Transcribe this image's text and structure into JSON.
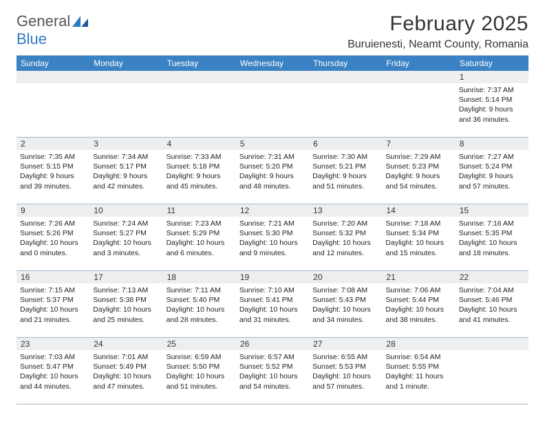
{
  "logo": {
    "text1": "General",
    "text2": "Blue"
  },
  "title": "February 2025",
  "location": "Buruienesti, Neamt County, Romania",
  "colors": {
    "header_bg": "#3b82c4",
    "header_text": "#ffffff",
    "daynum_bg": "#eceef0",
    "border": "#a8b8c8",
    "logo_gray": "#555555",
    "logo_blue": "#2f78c4"
  },
  "daynames": [
    "Sunday",
    "Monday",
    "Tuesday",
    "Wednesday",
    "Thursday",
    "Friday",
    "Saturday"
  ],
  "weeks": [
    [
      null,
      null,
      null,
      null,
      null,
      null,
      {
        "n": "1",
        "sr": "Sunrise: 7:37 AM",
        "ss": "Sunset: 5:14 PM",
        "d1": "Daylight: 9 hours",
        "d2": "and 36 minutes."
      }
    ],
    [
      {
        "n": "2",
        "sr": "Sunrise: 7:35 AM",
        "ss": "Sunset: 5:15 PM",
        "d1": "Daylight: 9 hours",
        "d2": "and 39 minutes."
      },
      {
        "n": "3",
        "sr": "Sunrise: 7:34 AM",
        "ss": "Sunset: 5:17 PM",
        "d1": "Daylight: 9 hours",
        "d2": "and 42 minutes."
      },
      {
        "n": "4",
        "sr": "Sunrise: 7:33 AM",
        "ss": "Sunset: 5:18 PM",
        "d1": "Daylight: 9 hours",
        "d2": "and 45 minutes."
      },
      {
        "n": "5",
        "sr": "Sunrise: 7:31 AM",
        "ss": "Sunset: 5:20 PM",
        "d1": "Daylight: 9 hours",
        "d2": "and 48 minutes."
      },
      {
        "n": "6",
        "sr": "Sunrise: 7:30 AM",
        "ss": "Sunset: 5:21 PM",
        "d1": "Daylight: 9 hours",
        "d2": "and 51 minutes."
      },
      {
        "n": "7",
        "sr": "Sunrise: 7:29 AM",
        "ss": "Sunset: 5:23 PM",
        "d1": "Daylight: 9 hours",
        "d2": "and 54 minutes."
      },
      {
        "n": "8",
        "sr": "Sunrise: 7:27 AM",
        "ss": "Sunset: 5:24 PM",
        "d1": "Daylight: 9 hours",
        "d2": "and 57 minutes."
      }
    ],
    [
      {
        "n": "9",
        "sr": "Sunrise: 7:26 AM",
        "ss": "Sunset: 5:26 PM",
        "d1": "Daylight: 10 hours",
        "d2": "and 0 minutes."
      },
      {
        "n": "10",
        "sr": "Sunrise: 7:24 AM",
        "ss": "Sunset: 5:27 PM",
        "d1": "Daylight: 10 hours",
        "d2": "and 3 minutes."
      },
      {
        "n": "11",
        "sr": "Sunrise: 7:23 AM",
        "ss": "Sunset: 5:29 PM",
        "d1": "Daylight: 10 hours",
        "d2": "and 6 minutes."
      },
      {
        "n": "12",
        "sr": "Sunrise: 7:21 AM",
        "ss": "Sunset: 5:30 PM",
        "d1": "Daylight: 10 hours",
        "d2": "and 9 minutes."
      },
      {
        "n": "13",
        "sr": "Sunrise: 7:20 AM",
        "ss": "Sunset: 5:32 PM",
        "d1": "Daylight: 10 hours",
        "d2": "and 12 minutes."
      },
      {
        "n": "14",
        "sr": "Sunrise: 7:18 AM",
        "ss": "Sunset: 5:34 PM",
        "d1": "Daylight: 10 hours",
        "d2": "and 15 minutes."
      },
      {
        "n": "15",
        "sr": "Sunrise: 7:16 AM",
        "ss": "Sunset: 5:35 PM",
        "d1": "Daylight: 10 hours",
        "d2": "and 18 minutes."
      }
    ],
    [
      {
        "n": "16",
        "sr": "Sunrise: 7:15 AM",
        "ss": "Sunset: 5:37 PM",
        "d1": "Daylight: 10 hours",
        "d2": "and 21 minutes."
      },
      {
        "n": "17",
        "sr": "Sunrise: 7:13 AM",
        "ss": "Sunset: 5:38 PM",
        "d1": "Daylight: 10 hours",
        "d2": "and 25 minutes."
      },
      {
        "n": "18",
        "sr": "Sunrise: 7:11 AM",
        "ss": "Sunset: 5:40 PM",
        "d1": "Daylight: 10 hours",
        "d2": "and 28 minutes."
      },
      {
        "n": "19",
        "sr": "Sunrise: 7:10 AM",
        "ss": "Sunset: 5:41 PM",
        "d1": "Daylight: 10 hours",
        "d2": "and 31 minutes."
      },
      {
        "n": "20",
        "sr": "Sunrise: 7:08 AM",
        "ss": "Sunset: 5:43 PM",
        "d1": "Daylight: 10 hours",
        "d2": "and 34 minutes."
      },
      {
        "n": "21",
        "sr": "Sunrise: 7:06 AM",
        "ss": "Sunset: 5:44 PM",
        "d1": "Daylight: 10 hours",
        "d2": "and 38 minutes."
      },
      {
        "n": "22",
        "sr": "Sunrise: 7:04 AM",
        "ss": "Sunset: 5:46 PM",
        "d1": "Daylight: 10 hours",
        "d2": "and 41 minutes."
      }
    ],
    [
      {
        "n": "23",
        "sr": "Sunrise: 7:03 AM",
        "ss": "Sunset: 5:47 PM",
        "d1": "Daylight: 10 hours",
        "d2": "and 44 minutes."
      },
      {
        "n": "24",
        "sr": "Sunrise: 7:01 AM",
        "ss": "Sunset: 5:49 PM",
        "d1": "Daylight: 10 hours",
        "d2": "and 47 minutes."
      },
      {
        "n": "25",
        "sr": "Sunrise: 6:59 AM",
        "ss": "Sunset: 5:50 PM",
        "d1": "Daylight: 10 hours",
        "d2": "and 51 minutes."
      },
      {
        "n": "26",
        "sr": "Sunrise: 6:57 AM",
        "ss": "Sunset: 5:52 PM",
        "d1": "Daylight: 10 hours",
        "d2": "and 54 minutes."
      },
      {
        "n": "27",
        "sr": "Sunrise: 6:55 AM",
        "ss": "Sunset: 5:53 PM",
        "d1": "Daylight: 10 hours",
        "d2": "and 57 minutes."
      },
      {
        "n": "28",
        "sr": "Sunrise: 6:54 AM",
        "ss": "Sunset: 5:55 PM",
        "d1": "Daylight: 11 hours",
        "d2": "and 1 minute."
      },
      null
    ]
  ]
}
